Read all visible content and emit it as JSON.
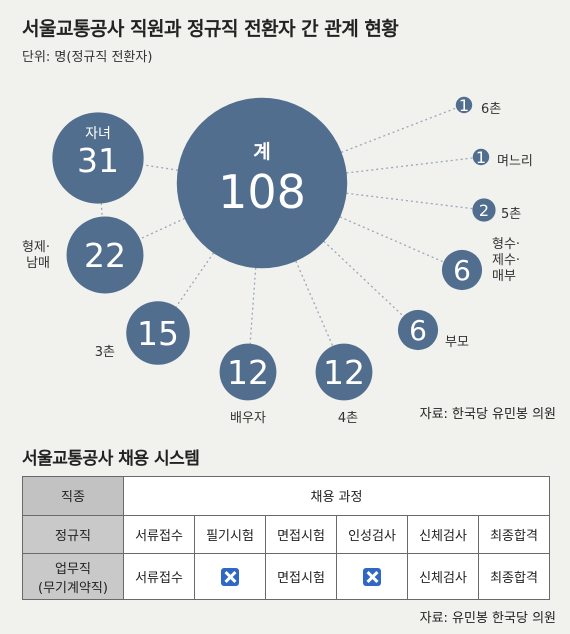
{
  "title": "서울교통공사 직원과 정규직 전환자 간 관계 현황",
  "unit": "단위: 명(정규직 전환자)",
  "chart_data": {
    "type": "bubble",
    "title": "서울교통공사 직원과 정규직 전환자 간 관계 현황",
    "unit": "명(정규직 전환자)",
    "center": {
      "label": "계",
      "value": 108
    },
    "items": [
      {
        "label": "자녀",
        "value": 31
      },
      {
        "label": "형제·남매",
        "value": 22
      },
      {
        "label": "3촌",
        "value": 15
      },
      {
        "label": "배우자",
        "value": 12
      },
      {
        "label": "4촌",
        "value": 12
      },
      {
        "label": "부모",
        "value": 6
      },
      {
        "label": "형수·제수·매부",
        "value": 6
      },
      {
        "label": "5촌",
        "value": 2
      },
      {
        "label": "며느리",
        "value": 1
      },
      {
        "label": "6촌",
        "value": 1
      }
    ],
    "color": "#516e8f"
  },
  "source1": "자료: 한국당 유민봉 의원",
  "table": {
    "title": "서울교통공사 채용 시스템",
    "header": {
      "first": "직종",
      "process": "채용 과정"
    },
    "rows": [
      {
        "type": "정규직",
        "cells": [
          "서류접수",
          "필기시험",
          "면접시험",
          "인성검사",
          "신체검사",
          "최종합격"
        ]
      },
      {
        "type": "업무직\n(무기계약직)",
        "cells": [
          "서류접수",
          "X",
          "면접시험",
          "X",
          "신체검사",
          "최종합격"
        ]
      }
    ]
  },
  "source2": "자료: 유민봉 한국당 의원"
}
